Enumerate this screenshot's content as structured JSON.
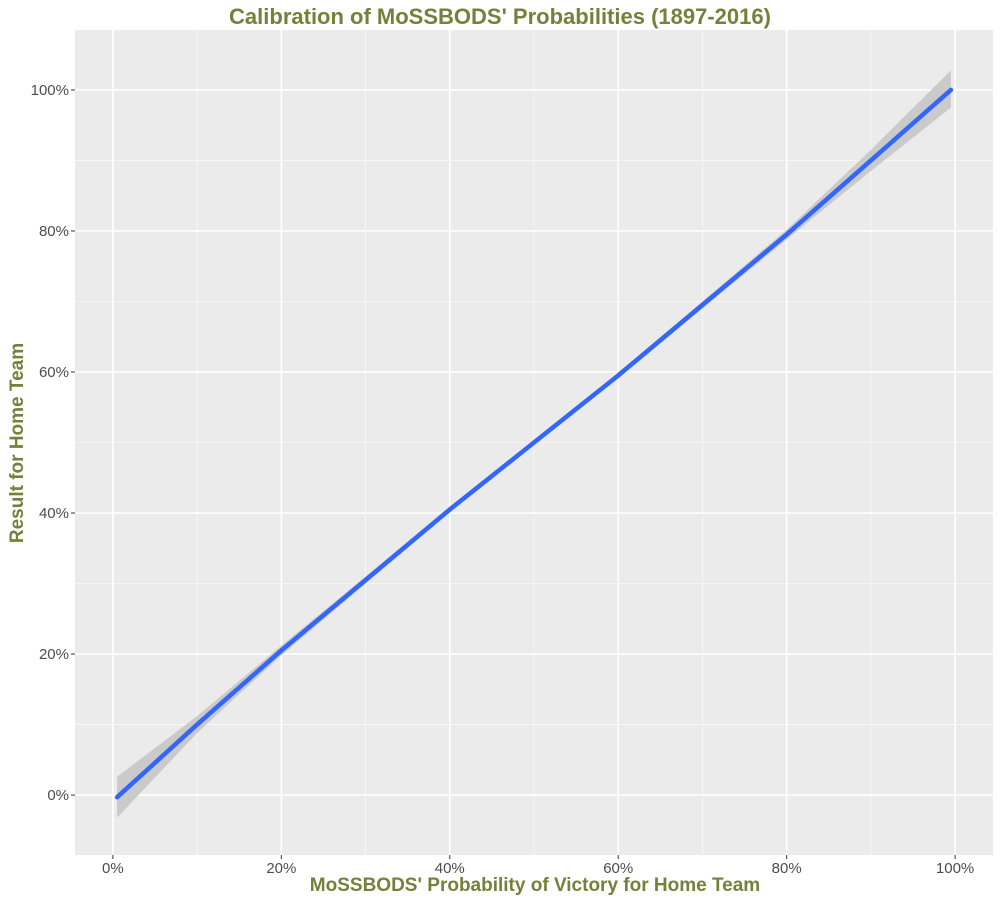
{
  "chart_data": {
    "type": "line",
    "title": "Calibration of MoSSBODS' Probabilities (1897-2016)",
    "xlabel": "MoSSBODS' Probability of Victory for Home Team",
    "ylabel": "Result for Home Team",
    "xlim": [
      -0.045,
      1.045
    ],
    "ylim": [
      -0.085,
      1.085
    ],
    "x_ticks": [
      0,
      0.2,
      0.4,
      0.6,
      0.8,
      1.0
    ],
    "x_tick_labels": [
      "0%",
      "20%",
      "40%",
      "60%",
      "80%",
      "100%"
    ],
    "y_ticks": [
      0,
      0.2,
      0.4,
      0.6,
      0.8,
      1.0
    ],
    "y_tick_labels": [
      "0%",
      "20%",
      "40%",
      "60%",
      "80%",
      "100%"
    ],
    "grid": true,
    "legend": "none",
    "series": [
      {
        "x": [
          0.005,
          0.1,
          0.2,
          0.3,
          0.4,
          0.5,
          0.6,
          0.7,
          0.8,
          0.9,
          0.995
        ],
        "y": [
          -0.003,
          0.1,
          0.205,
          0.305,
          0.405,
          0.5,
          0.595,
          0.695,
          0.795,
          0.9,
          1.0
        ],
        "ci_lower": [
          -0.032,
          0.088,
          0.198,
          0.3,
          0.401,
          0.497,
          0.591,
          0.69,
          0.788,
          0.885,
          0.975
        ],
        "ci_upper": [
          0.026,
          0.112,
          0.212,
          0.31,
          0.409,
          0.503,
          0.599,
          0.7,
          0.802,
          0.915,
          1.028
        ]
      }
    ],
    "colors": {
      "line": "#3366FF",
      "ribbon": "#C8C8C8",
      "panel": "#EBEBEB",
      "grid": "#FFFFFF",
      "title_text": "#76803A",
      "tick_text": "#4D4D4D"
    }
  }
}
